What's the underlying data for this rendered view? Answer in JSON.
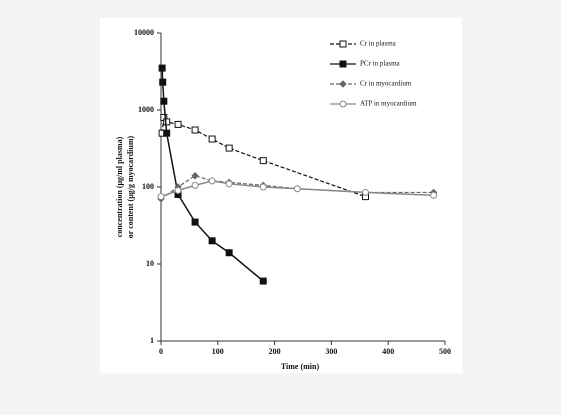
{
  "chart_data": {
    "type": "line",
    "xlabel": "Time (min)",
    "ylabel": [
      "concentration (μg/ml plasma)",
      "or content (μg/g myocardium)"
    ],
    "xlim": [
      0,
      500
    ],
    "xticks": [
      0,
      100,
      200,
      300,
      400,
      500
    ],
    "ylim": [
      1,
      10000
    ],
    "yticks": [
      1,
      10,
      100,
      1000,
      10000
    ],
    "log_y": true,
    "legend": "upper right",
    "series": [
      {
        "name": "Cr in plasma",
        "color": "#111111",
        "dash": true,
        "marker": "square",
        "marker_fill": "#ffffff",
        "x": [
          2,
          5,
          10,
          30,
          60,
          90,
          120,
          180,
          360
        ],
        "values": [
          500,
          800,
          700,
          650,
          550,
          420,
          320,
          220,
          75
        ]
      },
      {
        "name": "PCr in plasma",
        "color": "#111111",
        "dash": false,
        "marker": "square",
        "marker_fill": "#111111",
        "x": [
          2,
          3,
          5,
          10,
          30,
          60,
          90,
          120,
          180
        ],
        "values": [
          3500,
          2300,
          1300,
          500,
          80,
          35,
          20,
          14,
          6
        ]
      },
      {
        "name": "Cr in myocardium",
        "color": "#666666",
        "dash": true,
        "marker": "diamond",
        "marker_fill": "#666666",
        "x": [
          0,
          30,
          60,
          90,
          120,
          180,
          240,
          360,
          480
        ],
        "values": [
          70,
          100,
          140,
          120,
          115,
          105,
          95,
          85,
          85
        ]
      },
      {
        "name": "ATP in myocardium",
        "color": "#888888",
        "dash": false,
        "marker": "circle",
        "marker_fill": "#ffffff",
        "x": [
          0,
          30,
          60,
          90,
          120,
          180,
          240,
          360,
          480
        ],
        "values": [
          75,
          90,
          105,
          120,
          110,
          100,
          95,
          85,
          78
        ]
      }
    ]
  }
}
